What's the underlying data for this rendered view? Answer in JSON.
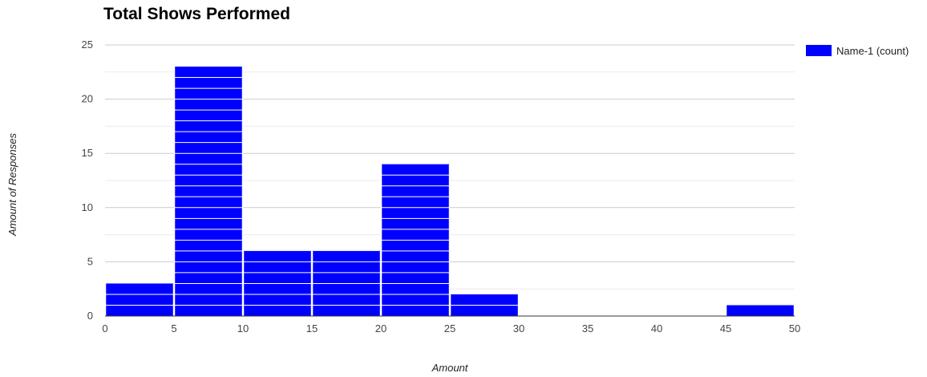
{
  "chart_data": {
    "type": "bar",
    "title": "Total Shows Performed",
    "xlabel": "Amount",
    "ylabel": "Amount of Responses",
    "bin_edges": [
      0,
      5,
      10,
      15,
      20,
      25,
      30,
      35,
      40,
      45,
      50
    ],
    "series": [
      {
        "name": "Name-1 (count)",
        "values": [
          3,
          23,
          6,
          6,
          14,
          2,
          0,
          0,
          0,
          1
        ]
      }
    ],
    "xlim": [
      0,
      50
    ],
    "ylim": [
      0,
      25
    ],
    "x_ticks": [
      "0",
      "5",
      "10",
      "15",
      "20",
      "25",
      "30",
      "35",
      "40",
      "45",
      "50"
    ],
    "y_ticks": [
      "0",
      "5",
      "10",
      "15",
      "20",
      "25"
    ],
    "grid": true,
    "legend": {
      "position": "right"
    },
    "bar_color": "#0000ff"
  }
}
